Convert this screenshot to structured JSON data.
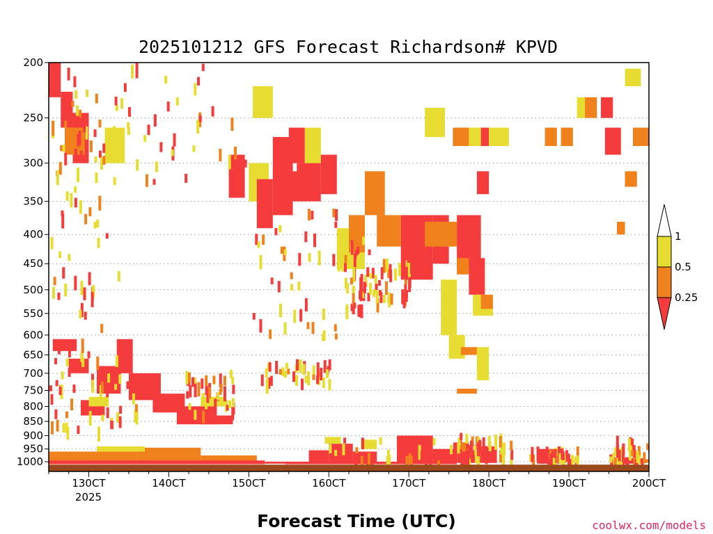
{
  "chart_data": {
    "type": "heatmap",
    "title": "2025101212 GFS Forecast Richardson# KPVD",
    "xlabel": "Forecast Time (UTC)",
    "ylabel": "",
    "credit": "coolwx.com/models",
    "y_scale": "pressure (inverted, log-like)",
    "y_range": [
      1040,
      200
    ],
    "x_range_days_oct": [
      12.5,
      20
    ],
    "y_ticks": [
      200,
      250,
      300,
      350,
      400,
      450,
      500,
      550,
      600,
      650,
      700,
      750,
      800,
      850,
      900,
      950,
      1000
    ],
    "y_tick_labels": [
      "200",
      "250",
      "300",
      "350",
      "400",
      "450",
      "500",
      "550",
      "600",
      "650",
      "700",
      "750",
      "800",
      "850",
      "900",
      "950",
      "1000"
    ],
    "x_ticks": [
      13,
      14,
      15,
      16,
      17,
      18,
      19,
      20
    ],
    "x_tick_labels": [
      "130CT",
      "140CT",
      "150CT",
      "160CT",
      "170CT",
      "180CT",
      "190CT",
      "200CT"
    ],
    "x_year_label": "2025",
    "grid": "dotted horizontal at pressure ticks",
    "legend": {
      "placement": "right",
      "labels": [
        "1",
        "0.5",
        "0.25"
      ],
      "bins": [
        {
          "name": "Ri < 0.25",
          "color": "#f53c3c"
        },
        {
          "name": "0.25 - 0.5",
          "color": "#f0821e"
        },
        {
          "name": "0.5 - 1",
          "color": "#e6dc32"
        }
      ]
    },
    "colors": {
      "red": "#f53c3c",
      "orange": "#f0821e",
      "yellow": "#e6dc32",
      "ground": "#9b4a1e"
    },
    "ground_pressure": 1012,
    "regions": [
      {
        "x0": 12.5,
        "x1": 13.6,
        "p0": 1008,
        "p1": 960,
        "c": "orange"
      },
      {
        "x0": 13.6,
        "x1": 14.4,
        "p0": 1005,
        "p1": 945,
        "c": "orange"
      },
      {
        "x0": 14.4,
        "x1": 15.1,
        "p0": 1003,
        "p1": 975,
        "c": "orange"
      },
      {
        "x0": 12.5,
        "x1": 15.2,
        "p0": 1010,
        "p1": 995,
        "c": "red"
      },
      {
        "x0": 13.1,
        "x1": 13.7,
        "p0": 960,
        "p1": 940,
        "c": "yellow"
      },
      {
        "x0": 15.2,
        "x1": 15.45,
        "p0": 1008,
        "p1": 1000,
        "c": "red"
      },
      {
        "x0": 15.45,
        "x1": 17.6,
        "p0": 1010,
        "p1": 1000,
        "c": "red"
      },
      {
        "x0": 15.75,
        "x1": 16.0,
        "p0": 1000,
        "p1": 955,
        "c": "red"
      },
      {
        "x0": 16.0,
        "x1": 16.3,
        "p0": 1000,
        "p1": 930,
        "c": "red"
      },
      {
        "x0": 16.3,
        "x1": 16.6,
        "p0": 1000,
        "p1": 960,
        "c": "red"
      },
      {
        "x0": 16.85,
        "x1": 17.3,
        "p0": 1000,
        "p1": 900,
        "c": "red"
      },
      {
        "x0": 17.3,
        "x1": 17.6,
        "p0": 1000,
        "p1": 950,
        "c": "red"
      },
      {
        "x0": 17.6,
        "x1": 17.9,
        "p0": 1005,
        "p1": 960,
        "c": "red"
      },
      {
        "x0": 17.9,
        "x1": 18.1,
        "p0": 1005,
        "p1": 940,
        "c": "red"
      },
      {
        "x0": 16.4,
        "x1": 16.6,
        "p0": 950,
        "p1": 915,
        "c": "yellow"
      },
      {
        "x0": 15.95,
        "x1": 16.15,
        "p0": 930,
        "p1": 905,
        "c": "yellow"
      },
      {
        "x0": 17.6,
        "x1": 17.75,
        "p0": 960,
        "p1": 925,
        "c": "orange"
      },
      {
        "x0": 18.6,
        "x1": 18.9,
        "p0": 1008,
        "p1": 950,
        "c": "red"
      },
      {
        "x0": 19.55,
        "x1": 19.9,
        "p0": 1008,
        "p1": 985,
        "c": "red"
      },
      {
        "x0": 19.9,
        "x1": 20.0,
        "p0": 1005,
        "p1": 990,
        "c": "orange"
      },
      {
        "x0": 12.55,
        "x1": 12.85,
        "p0": 640,
        "p1": 610,
        "c": "red"
      },
      {
        "x0": 12.75,
        "x1": 13.0,
        "p0": 700,
        "p1": 660,
        "c": "red"
      },
      {
        "x0": 13.1,
        "x1": 13.4,
        "p0": 760,
        "p1": 680,
        "c": "red"
      },
      {
        "x0": 13.35,
        "x1": 13.55,
        "p0": 700,
        "p1": 610,
        "c": "red"
      },
      {
        "x0": 12.9,
        "x1": 13.2,
        "p0": 830,
        "p1": 780,
        "c": "red"
      },
      {
        "x0": 13.5,
        "x1": 13.9,
        "p0": 780,
        "p1": 700,
        "c": "red"
      },
      {
        "x0": 13.8,
        "x1": 14.2,
        "p0": 820,
        "p1": 760,
        "c": "red"
      },
      {
        "x0": 14.1,
        "x1": 14.6,
        "p0": 860,
        "p1": 800,
        "c": "red"
      },
      {
        "x0": 14.4,
        "x1": 14.8,
        "p0": 860,
        "p1": 830,
        "c": "red"
      },
      {
        "x0": 13.0,
        "x1": 13.25,
        "p0": 800,
        "p1": 770,
        "c": "yellow"
      },
      {
        "x0": 14.4,
        "x1": 14.7,
        "p0": 800,
        "p1": 770,
        "c": "yellow"
      },
      {
        "x0": 12.5,
        "x1": 12.65,
        "p0": 230,
        "p1": 200,
        "c": "red"
      },
      {
        "x0": 12.65,
        "x1": 12.8,
        "p0": 260,
        "p1": 225,
        "c": "red"
      },
      {
        "x0": 12.8,
        "x1": 13.0,
        "p0": 300,
        "p1": 245,
        "c": "red"
      },
      {
        "x0": 12.7,
        "x1": 12.95,
        "p0": 290,
        "p1": 260,
        "c": "orange"
      },
      {
        "x0": 13.2,
        "x1": 13.45,
        "p0": 300,
        "p1": 260,
        "c": "yellow"
      },
      {
        "x0": 14.75,
        "x1": 14.95,
        "p0": 345,
        "p1": 290,
        "c": "red"
      },
      {
        "x0": 15.0,
        "x1": 15.25,
        "p0": 350,
        "p1": 300,
        "c": "yellow"
      },
      {
        "x0": 15.05,
        "x1": 15.3,
        "p0": 250,
        "p1": 220,
        "c": "yellow"
      },
      {
        "x0": 15.1,
        "x1": 15.3,
        "p0": 390,
        "p1": 320,
        "c": "red"
      },
      {
        "x0": 15.3,
        "x1": 15.55,
        "p0": 370,
        "p1": 270,
        "c": "red"
      },
      {
        "x0": 15.45,
        "x1": 15.7,
        "p0": 350,
        "p1": 310,
        "c": "red"
      },
      {
        "x0": 15.5,
        "x1": 15.7,
        "p0": 300,
        "p1": 260,
        "c": "red"
      },
      {
        "x0": 15.6,
        "x1": 15.9,
        "p0": 350,
        "p1": 300,
        "c": "red"
      },
      {
        "x0": 15.7,
        "x1": 15.9,
        "p0": 300,
        "p1": 260,
        "c": "yellow"
      },
      {
        "x0": 15.9,
        "x1": 16.1,
        "p0": 340,
        "p1": 290,
        "c": "red"
      },
      {
        "x0": 16.1,
        "x1": 16.45,
        "p0": 460,
        "p1": 390,
        "c": "yellow"
      },
      {
        "x0": 16.25,
        "x1": 16.45,
        "p0": 430,
        "p1": 370,
        "c": "orange"
      },
      {
        "x0": 16.45,
        "x1": 16.7,
        "p0": 370,
        "p1": 310,
        "c": "orange"
      },
      {
        "x0": 16.6,
        "x1": 16.9,
        "p0": 420,
        "p1": 370,
        "c": "orange"
      },
      {
        "x0": 16.9,
        "x1": 17.3,
        "p0": 480,
        "p1": 370,
        "c": "red"
      },
      {
        "x0": 17.3,
        "x1": 17.5,
        "p0": 450,
        "p1": 370,
        "c": "red"
      },
      {
        "x0": 17.2,
        "x1": 17.45,
        "p0": 420,
        "p1": 380,
        "c": "orange"
      },
      {
        "x0": 17.45,
        "x1": 17.6,
        "p0": 420,
        "p1": 380,
        "c": "orange"
      },
      {
        "x0": 17.6,
        "x1": 17.9,
        "p0": 460,
        "p1": 370,
        "c": "red"
      },
      {
        "x0": 17.6,
        "x1": 17.75,
        "p0": 470,
        "p1": 440,
        "c": "orange"
      },
      {
        "x0": 17.75,
        "x1": 17.95,
        "p0": 510,
        "p1": 440,
        "c": "red"
      },
      {
        "x0": 17.4,
        "x1": 17.6,
        "p0": 600,
        "p1": 480,
        "c": "yellow"
      },
      {
        "x0": 17.5,
        "x1": 17.7,
        "p0": 660,
        "p1": 600,
        "c": "yellow"
      },
      {
        "x0": 17.65,
        "x1": 17.85,
        "p0": 650,
        "p1": 630,
        "c": "orange"
      },
      {
        "x0": 17.8,
        "x1": 18.05,
        "p0": 555,
        "p1": 510,
        "c": "yellow"
      },
      {
        "x0": 17.9,
        "x1": 18.05,
        "p0": 540,
        "p1": 510,
        "c": "orange"
      },
      {
        "x0": 17.85,
        "x1": 18.0,
        "p0": 720,
        "p1": 630,
        "c": "yellow"
      },
      {
        "x0": 17.2,
        "x1": 17.45,
        "p0": 270,
        "p1": 240,
        "c": "yellow"
      },
      {
        "x0": 17.6,
        "x1": 17.9,
        "p0": 280,
        "p1": 260,
        "c": "yellow"
      },
      {
        "x0": 17.55,
        "x1": 17.75,
        "p0": 280,
        "p1": 260,
        "c": "orange"
      },
      {
        "x0": 17.9,
        "x1": 18.0,
        "p0": 280,
        "p1": 260,
        "c": "red"
      },
      {
        "x0": 17.85,
        "x1": 18.0,
        "p0": 340,
        "p1": 310,
        "c": "red"
      },
      {
        "x0": 17.6,
        "x1": 17.85,
        "p0": 760,
        "p1": 745,
        "c": "orange"
      },
      {
        "x0": 18.0,
        "x1": 18.25,
        "p0": 280,
        "p1": 260,
        "c": "yellow"
      },
      {
        "x0": 18.7,
        "x1": 18.85,
        "p0": 280,
        "p1": 260,
        "c": "orange"
      },
      {
        "x0": 18.9,
        "x1": 19.05,
        "p0": 280,
        "p1": 260,
        "c": "orange"
      },
      {
        "x0": 19.2,
        "x1": 19.35,
        "p0": 250,
        "p1": 230,
        "c": "orange"
      },
      {
        "x0": 19.1,
        "x1": 19.2,
        "p0": 250,
        "p1": 230,
        "c": "yellow"
      },
      {
        "x0": 19.4,
        "x1": 19.55,
        "p0": 250,
        "p1": 230,
        "c": "red"
      },
      {
        "x0": 19.45,
        "x1": 19.65,
        "p0": 290,
        "p1": 260,
        "c": "red"
      },
      {
        "x0": 19.8,
        "x1": 20.0,
        "p0": 280,
        "p1": 260,
        "c": "orange"
      },
      {
        "x0": 19.7,
        "x1": 19.85,
        "p0": 330,
        "p1": 310,
        "c": "orange"
      },
      {
        "x0": 19.6,
        "x1": 19.7,
        "p0": 400,
        "p1": 380,
        "c": "orange"
      },
      {
        "x0": 19.7,
        "x1": 19.9,
        "p0": 220,
        "p1": 205,
        "c": "yellow"
      }
    ],
    "scatter_seed": 7
  }
}
